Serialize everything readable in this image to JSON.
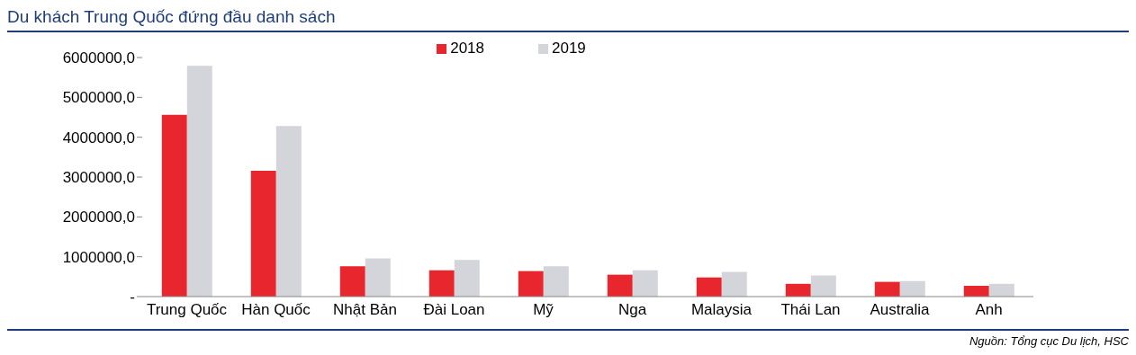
{
  "chart_data": {
    "type": "bar",
    "title": "Du khách Trung Quốc đứng đầu danh sách",
    "annotations": [
      "Nguồn: Tổng cục Du lịch, HSC"
    ],
    "categories": [
      "Trung Quốc",
      "Hàn Quốc",
      "Nhật Bản",
      "Đài Loan",
      "Mỹ",
      "Nga",
      "Malaysia",
      "Thái Lan",
      "Australia",
      "Anh"
    ],
    "series": [
      {
        "name": "2018",
        "color": "#e8262e",
        "values": [
          4560000,
          3160000,
          760000,
          660000,
          640000,
          550000,
          480000,
          320000,
          370000,
          270000
        ]
      },
      {
        "name": "2019",
        "color": "#d3d5da",
        "values": [
          5790000,
          4280000,
          960000,
          920000,
          760000,
          660000,
          620000,
          530000,
          390000,
          320000
        ]
      }
    ],
    "ylim": [
      0,
      6000000
    ],
    "yticks": [
      {
        "value": 0,
        "label": "-"
      },
      {
        "value": 1000000,
        "label": "1000000,0"
      },
      {
        "value": 2000000,
        "label": "2000000,0"
      },
      {
        "value": 3000000,
        "label": "3000000,0"
      },
      {
        "value": 4000000,
        "label": "4000000,0"
      },
      {
        "value": 5000000,
        "label": "5000000,0"
      },
      {
        "value": 6000000,
        "label": "6000000,0"
      }
    ],
    "grid": false,
    "legend": "top"
  }
}
